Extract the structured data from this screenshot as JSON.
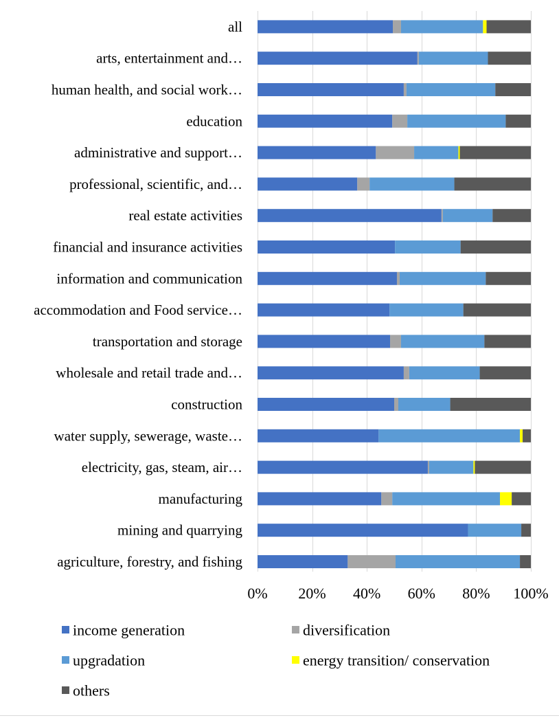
{
  "chart_data": {
    "type": "bar",
    "orientation": "horizontal",
    "stacked": "percent",
    "title": "",
    "xlabel": "",
    "ylabel": "",
    "xlim": [
      0,
      100
    ],
    "x_ticks": [
      0,
      20,
      40,
      60,
      80,
      100
    ],
    "x_tick_labels": [
      "0%",
      "20%",
      "40%",
      "60%",
      "80%",
      "100%"
    ],
    "grid": "vertical",
    "legend_position": "bottom",
    "categories": [
      "all",
      "arts, entertainment and…",
      "human health, and social work…",
      "education",
      "administrative and support…",
      "professional, scientific, and…",
      "real estate activities",
      "financial and insurance activities",
      "information and communication",
      "accommodation and Food service…",
      "transportation and storage",
      "wholesale and retail trade and…",
      "construction",
      "water supply, sewerage, waste…",
      "electricity, gas, steam, air…",
      "manufacturing",
      "mining and quarrying",
      "agriculture, forestry, and fishing"
    ],
    "series": [
      {
        "name": "income generation",
        "color": "#4472C4",
        "values": [
          49.5,
          58.5,
          53.5,
          49.3,
          43.3,
          36.5,
          67.3,
          50.3,
          51.0,
          48.3,
          48.5,
          53.5,
          50.0,
          44.3,
          62.3,
          45.3,
          77.0,
          33.0
        ]
      },
      {
        "name": "diversification",
        "color": "#A5A5A5",
        "values": [
          3.0,
          0.5,
          1.0,
          5.5,
          14.0,
          4.5,
          0.5,
          0.0,
          1.0,
          0.0,
          4.0,
          2.0,
          1.5,
          0.0,
          0.5,
          4.0,
          0.0,
          17.5
        ]
      },
      {
        "name": "upgradation",
        "color": "#5B9BD5",
        "values": [
          30.0,
          25.3,
          32.5,
          36.0,
          16.2,
          31.0,
          18.2,
          24.0,
          31.5,
          27.0,
          30.5,
          25.8,
          19.0,
          51.7,
          16.2,
          39.4,
          19.5,
          45.5
        ]
      },
      {
        "name": "energy transition/ conservation",
        "color": "#FFFF00",
        "values": [
          1.3,
          0.0,
          0.0,
          0.0,
          0.5,
          0.0,
          0.0,
          0.0,
          0.0,
          0.0,
          0.0,
          0.0,
          0.0,
          1.0,
          0.5,
          4.3,
          0.0,
          0.0
        ]
      },
      {
        "name": "others",
        "color": "#595959",
        "values": [
          16.2,
          15.7,
          13.0,
          9.2,
          26.0,
          28.0,
          14.0,
          25.7,
          16.5,
          24.7,
          17.0,
          18.7,
          29.5,
          3.0,
          20.5,
          7.0,
          3.5,
          4.0
        ]
      }
    ]
  }
}
